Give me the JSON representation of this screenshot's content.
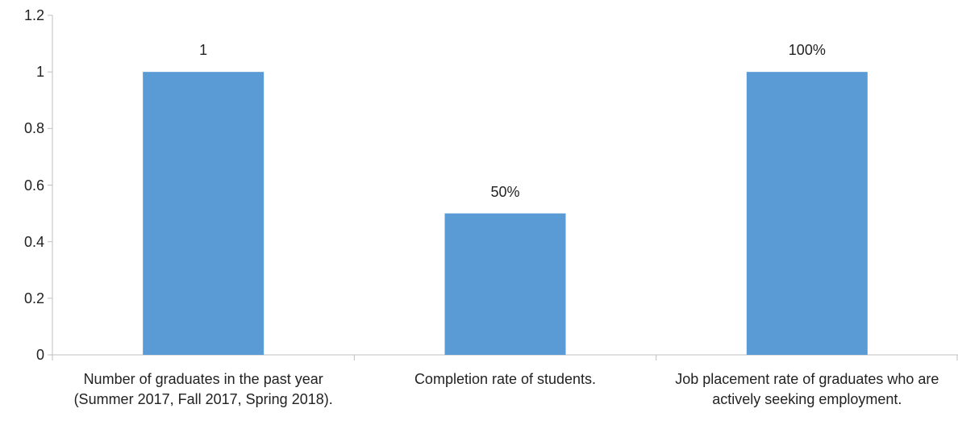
{
  "chart_data": {
    "type": "bar",
    "categories": [
      "Number of graduates in the past year (Summer 2017, Fall 2017, Spring 2018).",
      "Completion rate of students.",
      "Job placement rate of graduates who are actively seeking employment."
    ],
    "values": [
      1,
      0.5,
      1
    ],
    "data_labels": [
      "1",
      "50%",
      "100%"
    ],
    "y_ticks": [
      "0",
      "0.2",
      "0.4",
      "0.6",
      "0.8",
      "1",
      "1.2"
    ],
    "ylim": [
      0,
      1.2
    ],
    "grid": false,
    "legend": "none",
    "bar_color": "#5b9bd5",
    "axis_color": "#bfbfbf"
  }
}
